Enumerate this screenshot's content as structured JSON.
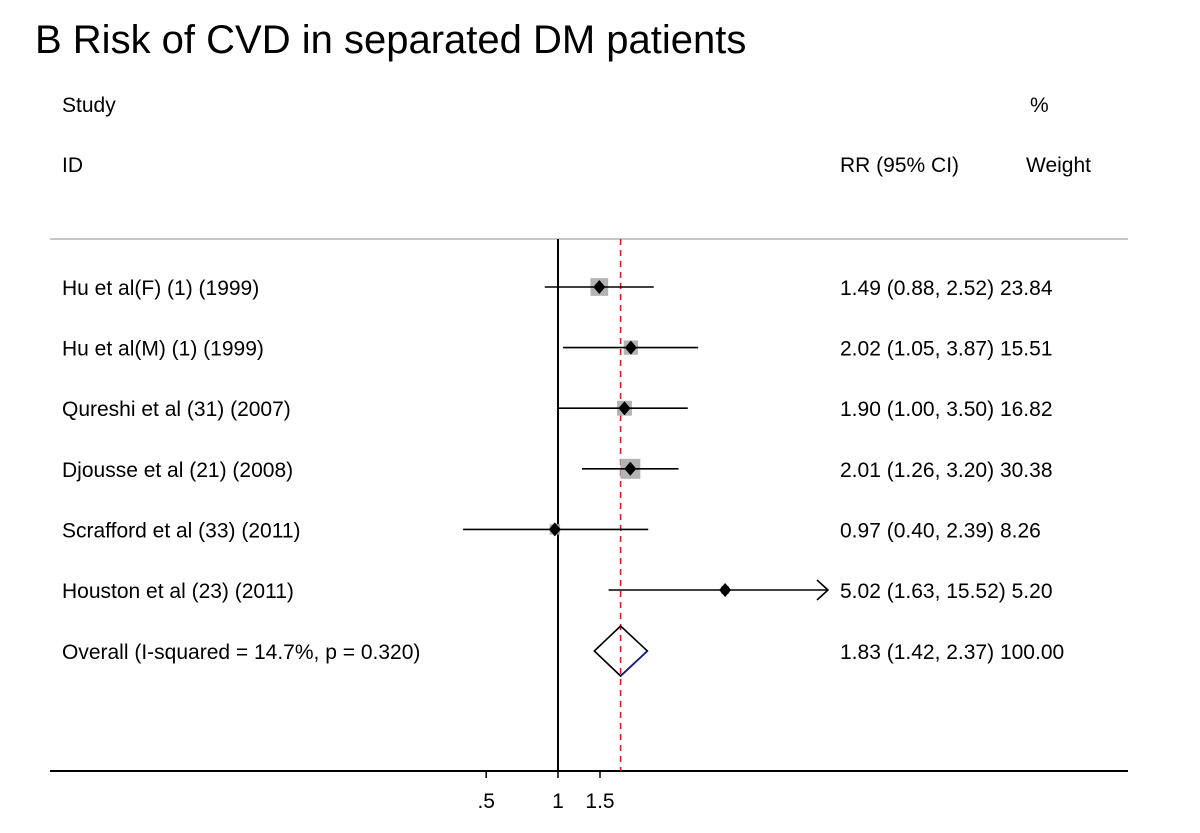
{
  "chart_data": {
    "type": "forest",
    "title": "B Risk of CVD in separated DM patients",
    "headers": {
      "study_line1": "Study",
      "study_line2": "ID",
      "estimate": "RR (95% CI)",
      "weight_line1": "%",
      "weight_line2": "Weight"
    },
    "studies": [
      {
        "label": "Hu et al(F) (1) (1999)",
        "rr": 1.49,
        "lo": 0.88,
        "hi": 2.52,
        "weight": 23.84,
        "text": "1.49 (0.88, 2.52) 23.84"
      },
      {
        "label": "Hu et al(M) (1) (1999)",
        "rr": 2.02,
        "lo": 1.05,
        "hi": 3.87,
        "weight": 15.51,
        "text": "2.02 (1.05, 3.87) 15.51"
      },
      {
        "label": "Qureshi et al (31) (2007)",
        "rr": 1.9,
        "lo": 1.0,
        "hi": 3.5,
        "weight": 16.82,
        "text": "1.90 (1.00, 3.50) 16.82"
      },
      {
        "label": "Djousse et al (21) (2008)",
        "rr": 2.01,
        "lo": 1.26,
        "hi": 3.2,
        "weight": 30.38,
        "text": "2.01 (1.26, 3.20) 30.38"
      },
      {
        "label": "Scrafford et al (33) (2011)",
        "rr": 0.97,
        "lo": 0.4,
        "hi": 2.39,
        "weight": 8.26,
        "text": "0.97 (0.40, 2.39)  8.26"
      },
      {
        "label": "Houston et al (23) (2011)",
        "rr": 5.02,
        "lo": 1.63,
        "hi": 15.52,
        "weight": 5.2,
        "text": "5.02 (1.63, 15.52) 5.20"
      }
    ],
    "overall": {
      "label": "Overall  (I-squared = 14.7%, p = 0.320)",
      "rr": 1.83,
      "lo": 1.42,
      "hi": 2.37,
      "weight": 100.0,
      "text": "1.83 (1.42, 2.37) 100.00"
    },
    "x_scale": "log",
    "null_line": 1,
    "xticks": [
      {
        "value": 0.5,
        "label": ".5"
      },
      {
        "value": 1,
        "label": "1"
      },
      {
        "value": 1.5,
        "label": "1.5"
      }
    ],
    "colors": {
      "text": "#111111",
      "line": "#000000",
      "box": "#b3b3b3",
      "ref_line": "#cc2222",
      "diamond_edge": "#1a1a7a"
    }
  }
}
